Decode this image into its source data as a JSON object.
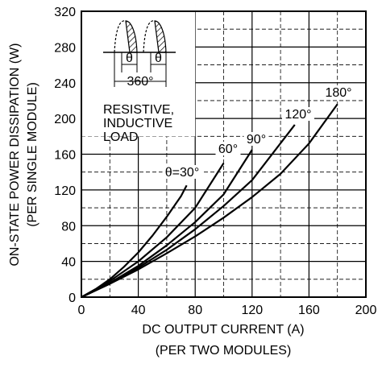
{
  "chart_data": {
    "type": "line",
    "xlabel": "DC OUTPUT CURRENT (A)",
    "xlabel2": "(PER TWO MODULES)",
    "ylabel": "ON-STATE POWER DISSIPATION (W)",
    "ylabel2": "(PER SINGLE MODULE)",
    "xlim": [
      0,
      200
    ],
    "ylim": [
      0,
      320
    ],
    "xticks": [
      0,
      40,
      80,
      120,
      160,
      200
    ],
    "yticks": [
      0,
      40,
      80,
      120,
      160,
      200,
      240,
      280,
      320
    ],
    "grid": "major solid, minor dashed",
    "series": [
      {
        "name": "θ=30°",
        "x": [
          0,
          10,
          20,
          30,
          40,
          50,
          60,
          70,
          74
        ],
        "y": [
          0,
          9,
          20,
          34,
          50,
          69,
          90,
          113,
          125
        ]
      },
      {
        "name": "60°",
        "x": [
          0,
          10,
          20,
          40,
          60,
          80,
          100
        ],
        "y": [
          0,
          8,
          18,
          40,
          67,
          100,
          150
        ]
      },
      {
        "name": "90°",
        "x": [
          0,
          20,
          40,
          60,
          80,
          100,
          120
        ],
        "y": [
          0,
          16,
          35,
          58,
          84,
          115,
          165
        ]
      },
      {
        "name": "120°",
        "x": [
          0,
          20,
          40,
          60,
          80,
          100,
          120,
          150
        ],
        "y": [
          0,
          15,
          33,
          53,
          76,
          102,
          131,
          193
        ]
      },
      {
        "name": "180°",
        "x": [
          0,
          20,
          40,
          60,
          80,
          100,
          120,
          140,
          160,
          180
        ],
        "y": [
          0,
          15,
          31,
          49,
          68,
          89,
          112,
          138,
          172,
          216
        ]
      }
    ],
    "inset": {
      "angle_label": "θ",
      "period_label": "360°",
      "note_lines": [
        "RESISTIVE,",
        "INDUCTIVE",
        "LOAD"
      ]
    }
  }
}
